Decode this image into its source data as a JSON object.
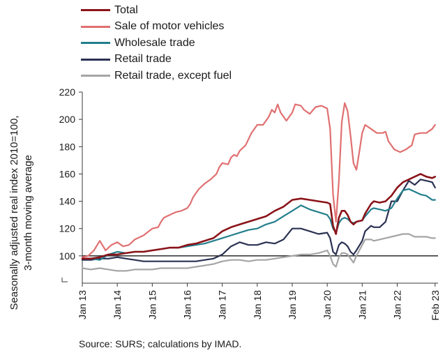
{
  "chart_data": {
    "type": "line",
    "title": "",
    "ylabel_lines": [
      "Seasonally adjusted real index 2010=100,",
      "3-month moving average"
    ],
    "xlabel": "",
    "ylim": [
      80,
      220
    ],
    "yticks": [
      100,
      120,
      140,
      160,
      180,
      200,
      220
    ],
    "xtick_labels": [
      "Jan 13",
      "Jan 14",
      "Jan 15",
      "Jan 16",
      "Jan 17",
      "Jan 18",
      "Jan 19",
      "Jan 20",
      "Jan 21",
      "Jan 22",
      "Feb 23"
    ],
    "xtick_months": [
      0,
      12,
      24,
      36,
      48,
      60,
      72,
      84,
      96,
      108,
      121
    ],
    "x_unit": "months since Jan 13",
    "reference_line": 100,
    "legend_placement": "top-left, above plot",
    "grid": false,
    "series": [
      {
        "name": "Total",
        "color": "#8b1319",
        "points": [
          [
            0,
            98
          ],
          [
            3,
            98
          ],
          [
            6,
            99
          ],
          [
            9,
            101
          ],
          [
            12,
            101
          ],
          [
            15,
            102
          ],
          [
            18,
            103
          ],
          [
            21,
            103
          ],
          [
            24,
            104
          ],
          [
            27,
            105
          ],
          [
            30,
            106
          ],
          [
            33,
            106
          ],
          [
            36,
            108
          ],
          [
            39,
            109
          ],
          [
            42,
            111
          ],
          [
            45,
            113
          ],
          [
            48,
            118
          ],
          [
            51,
            121
          ],
          [
            54,
            123
          ],
          [
            57,
            125
          ],
          [
            60,
            127
          ],
          [
            63,
            129
          ],
          [
            66,
            133
          ],
          [
            69,
            136
          ],
          [
            72,
            141
          ],
          [
            75,
            142
          ],
          [
            78,
            141
          ],
          [
            81,
            140
          ],
          [
            84,
            139
          ],
          [
            85,
            138
          ],
          [
            86,
            122
          ],
          [
            87,
            116
          ],
          [
            88,
            128
          ],
          [
            89,
            133
          ],
          [
            90,
            133
          ],
          [
            91,
            130
          ],
          [
            92,
            125
          ],
          [
            93,
            123
          ],
          [
            94,
            125
          ],
          [
            96,
            126
          ],
          [
            97,
            131
          ],
          [
            99,
            138
          ],
          [
            100,
            140
          ],
          [
            102,
            139
          ],
          [
            104,
            140
          ],
          [
            106,
            144
          ],
          [
            108,
            150
          ],
          [
            110,
            154
          ],
          [
            112,
            156
          ],
          [
            114,
            158
          ],
          [
            116,
            160
          ],
          [
            118,
            158
          ],
          [
            120,
            157
          ],
          [
            121,
            158
          ]
        ]
      },
      {
        "name": "Sale of motor vehicles",
        "color": "#e07071",
        "points": [
          [
            0,
            99
          ],
          [
            2,
            100
          ],
          [
            4,
            104
          ],
          [
            6,
            111
          ],
          [
            8,
            104
          ],
          [
            10,
            108
          ],
          [
            12,
            110
          ],
          [
            14,
            107
          ],
          [
            16,
            108
          ],
          [
            18,
            112
          ],
          [
            21,
            115
          ],
          [
            24,
            120
          ],
          [
            26,
            121
          ],
          [
            27,
            125
          ],
          [
            28,
            128
          ],
          [
            30,
            130
          ],
          [
            32,
            132
          ],
          [
            34,
            133
          ],
          [
            36,
            135
          ],
          [
            37,
            138
          ],
          [
            38,
            143
          ],
          [
            39,
            146
          ],
          [
            40,
            149
          ],
          [
            42,
            153
          ],
          [
            44,
            156
          ],
          [
            46,
            160
          ],
          [
            47,
            165
          ],
          [
            48,
            168
          ],
          [
            50,
            167
          ],
          [
            51,
            172
          ],
          [
            52,
            174
          ],
          [
            53,
            173
          ],
          [
            54,
            177
          ],
          [
            56,
            181
          ],
          [
            58,
            190
          ],
          [
            60,
            196
          ],
          [
            62,
            196
          ],
          [
            64,
            202
          ],
          [
            65,
            207
          ],
          [
            66,
            205
          ],
          [
            67,
            211
          ],
          [
            68,
            205
          ],
          [
            70,
            199
          ],
          [
            72,
            205
          ],
          [
            73,
            211
          ],
          [
            75,
            210
          ],
          [
            76,
            207
          ],
          [
            78,
            204
          ],
          [
            80,
            209
          ],
          [
            82,
            210
          ],
          [
            84,
            208
          ],
          [
            85,
            193
          ],
          [
            86,
            145
          ],
          [
            87,
            125
          ],
          [
            88,
            155
          ],
          [
            89,
            198
          ],
          [
            90,
            212
          ],
          [
            91,
            206
          ],
          [
            92,
            188
          ],
          [
            93,
            168
          ],
          [
            94,
            163
          ],
          [
            95,
            176
          ],
          [
            96,
            190
          ],
          [
            97,
            196
          ],
          [
            99,
            193
          ],
          [
            101,
            190
          ],
          [
            103,
            190
          ],
          [
            104,
            191
          ],
          [
            105,
            184
          ],
          [
            107,
            178
          ],
          [
            109,
            176
          ],
          [
            111,
            178
          ],
          [
            113,
            181
          ],
          [
            114,
            189
          ],
          [
            116,
            190
          ],
          [
            118,
            190
          ],
          [
            120,
            193
          ],
          [
            121,
            196
          ]
        ]
      },
      {
        "name": "Wholesale trade",
        "color": "#237e8c",
        "points": [
          [
            0,
            98
          ],
          [
            3,
            98
          ],
          [
            6,
            97
          ],
          [
            9,
            101
          ],
          [
            12,
            103
          ],
          [
            15,
            102
          ],
          [
            18,
            103
          ],
          [
            21,
            103
          ],
          [
            24,
            104
          ],
          [
            27,
            105
          ],
          [
            30,
            106
          ],
          [
            33,
            106
          ],
          [
            36,
            107
          ],
          [
            39,
            108
          ],
          [
            42,
            109
          ],
          [
            45,
            111
          ],
          [
            48,
            113
          ],
          [
            51,
            115
          ],
          [
            54,
            117
          ],
          [
            57,
            119
          ],
          [
            60,
            120
          ],
          [
            63,
            123
          ],
          [
            66,
            125
          ],
          [
            69,
            129
          ],
          [
            72,
            133
          ],
          [
            75,
            137
          ],
          [
            78,
            134
          ],
          [
            81,
            132
          ],
          [
            84,
            130
          ],
          [
            85,
            127
          ],
          [
            86,
            120
          ],
          [
            87,
            117
          ],
          [
            88,
            124
          ],
          [
            89,
            127
          ],
          [
            90,
            128
          ],
          [
            91,
            127
          ],
          [
            92,
            125
          ],
          [
            93,
            124
          ],
          [
            94,
            125
          ],
          [
            96,
            126
          ],
          [
            97,
            129
          ],
          [
            99,
            134
          ],
          [
            100,
            135
          ],
          [
            102,
            134
          ],
          [
            104,
            133
          ],
          [
            106,
            135
          ],
          [
            108,
            142
          ],
          [
            110,
            148
          ],
          [
            112,
            149
          ],
          [
            114,
            147
          ],
          [
            116,
            145
          ],
          [
            118,
            144
          ],
          [
            120,
            141
          ],
          [
            121,
            141
          ]
        ]
      },
      {
        "name": "Retail trade",
        "color": "#2b3152",
        "points": [
          [
            0,
            97
          ],
          [
            3,
            97
          ],
          [
            6,
            98
          ],
          [
            9,
            98
          ],
          [
            12,
            99
          ],
          [
            15,
            98
          ],
          [
            18,
            97
          ],
          [
            21,
            96
          ],
          [
            24,
            96
          ],
          [
            27,
            96
          ],
          [
            30,
            96
          ],
          [
            33,
            96
          ],
          [
            36,
            96
          ],
          [
            39,
            96
          ],
          [
            42,
            97
          ],
          [
            45,
            98
          ],
          [
            48,
            101
          ],
          [
            51,
            107
          ],
          [
            54,
            110
          ],
          [
            57,
            108
          ],
          [
            60,
            108
          ],
          [
            63,
            110
          ],
          [
            66,
            109
          ],
          [
            69,
            112
          ],
          [
            72,
            120
          ],
          [
            75,
            120
          ],
          [
            78,
            118
          ],
          [
            81,
            116
          ],
          [
            84,
            117
          ],
          [
            85,
            113
          ],
          [
            86,
            103
          ],
          [
            87,
            101
          ],
          [
            88,
            108
          ],
          [
            89,
            110
          ],
          [
            90,
            109
          ],
          [
            91,
            107
          ],
          [
            92,
            103
          ],
          [
            93,
            101
          ],
          [
            94,
            104
          ],
          [
            96,
            111
          ],
          [
            97,
            118
          ],
          [
            99,
            122
          ],
          [
            100,
            121
          ],
          [
            102,
            121
          ],
          [
            104,
            125
          ],
          [
            106,
            140
          ],
          [
            108,
            140
          ],
          [
            110,
            148
          ],
          [
            112,
            155
          ],
          [
            114,
            152
          ],
          [
            116,
            156
          ],
          [
            118,
            155
          ],
          [
            120,
            154
          ],
          [
            121,
            150
          ]
        ]
      },
      {
        "name": "Retail trade, except fuel",
        "color": "#a5a5a5",
        "points": [
          [
            0,
            91
          ],
          [
            3,
            90
          ],
          [
            6,
            91
          ],
          [
            9,
            90
          ],
          [
            12,
            89
          ],
          [
            15,
            89
          ],
          [
            18,
            90
          ],
          [
            21,
            90
          ],
          [
            24,
            90
          ],
          [
            27,
            91
          ],
          [
            30,
            91
          ],
          [
            33,
            91
          ],
          [
            36,
            91
          ],
          [
            39,
            92
          ],
          [
            42,
            93
          ],
          [
            45,
            94
          ],
          [
            48,
            96
          ],
          [
            51,
            97
          ],
          [
            54,
            97
          ],
          [
            57,
            96
          ],
          [
            60,
            97
          ],
          [
            63,
            97
          ],
          [
            66,
            98
          ],
          [
            69,
            99
          ],
          [
            72,
            100
          ],
          [
            75,
            101
          ],
          [
            78,
            101
          ],
          [
            81,
            102
          ],
          [
            84,
            104
          ],
          [
            85,
            100
          ],
          [
            86,
            94
          ],
          [
            87,
            92
          ],
          [
            88,
            99
          ],
          [
            89,
            102
          ],
          [
            90,
            102
          ],
          [
            91,
            101
          ],
          [
            92,
            98
          ],
          [
            93,
            95
          ],
          [
            94,
            100
          ],
          [
            96,
            108
          ],
          [
            97,
            112
          ],
          [
            99,
            112
          ],
          [
            100,
            111
          ],
          [
            102,
            112
          ],
          [
            104,
            113
          ],
          [
            106,
            114
          ],
          [
            108,
            115
          ],
          [
            110,
            116
          ],
          [
            112,
            116
          ],
          [
            114,
            114
          ],
          [
            116,
            114
          ],
          [
            118,
            114
          ],
          [
            120,
            113
          ],
          [
            121,
            113
          ]
        ]
      }
    ]
  },
  "source": "Source: SURS; calculations by IMAD."
}
